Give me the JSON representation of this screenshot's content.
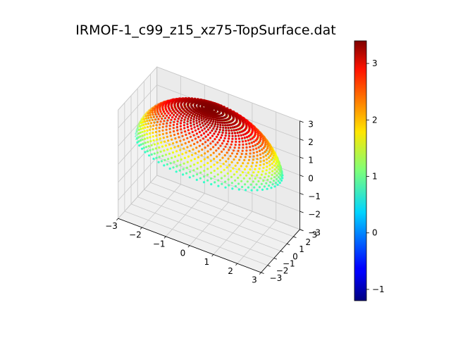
{
  "chart_data": {
    "type": "scatter",
    "title": "IRMOF-1_c99_z15_xz75-TopSurface.dat",
    "xlabel": "",
    "ylabel": "",
    "zlabel": "",
    "projection": "3d",
    "colormap": "jet",
    "x_ticks": [
      "−3",
      "−2",
      "−1",
      "0",
      "1",
      "2",
      "3"
    ],
    "y_ticks": [
      "−3",
      "−2",
      "−1",
      "0",
      "1",
      "2",
      "3"
    ],
    "z_ticks": [
      "−3",
      "−2",
      "−1",
      "0",
      "1",
      "2",
      "3"
    ],
    "xlim": [
      -3,
      3
    ],
    "ylim": [
      -3,
      3
    ],
    "zlim": [
      -3,
      3
    ],
    "colorbar": {
      "range": [
        -1.2,
        3.4
      ],
      "ticks": [
        "−1",
        "0",
        "1",
        "2",
        "3"
      ]
    },
    "surface": {
      "shape": "dome",
      "radius": 3.0,
      "z_center": 0.4,
      "z_min_visible": -1.5,
      "azimuth_deg": -60,
      "elevation_deg": 30
    },
    "grid": true
  }
}
